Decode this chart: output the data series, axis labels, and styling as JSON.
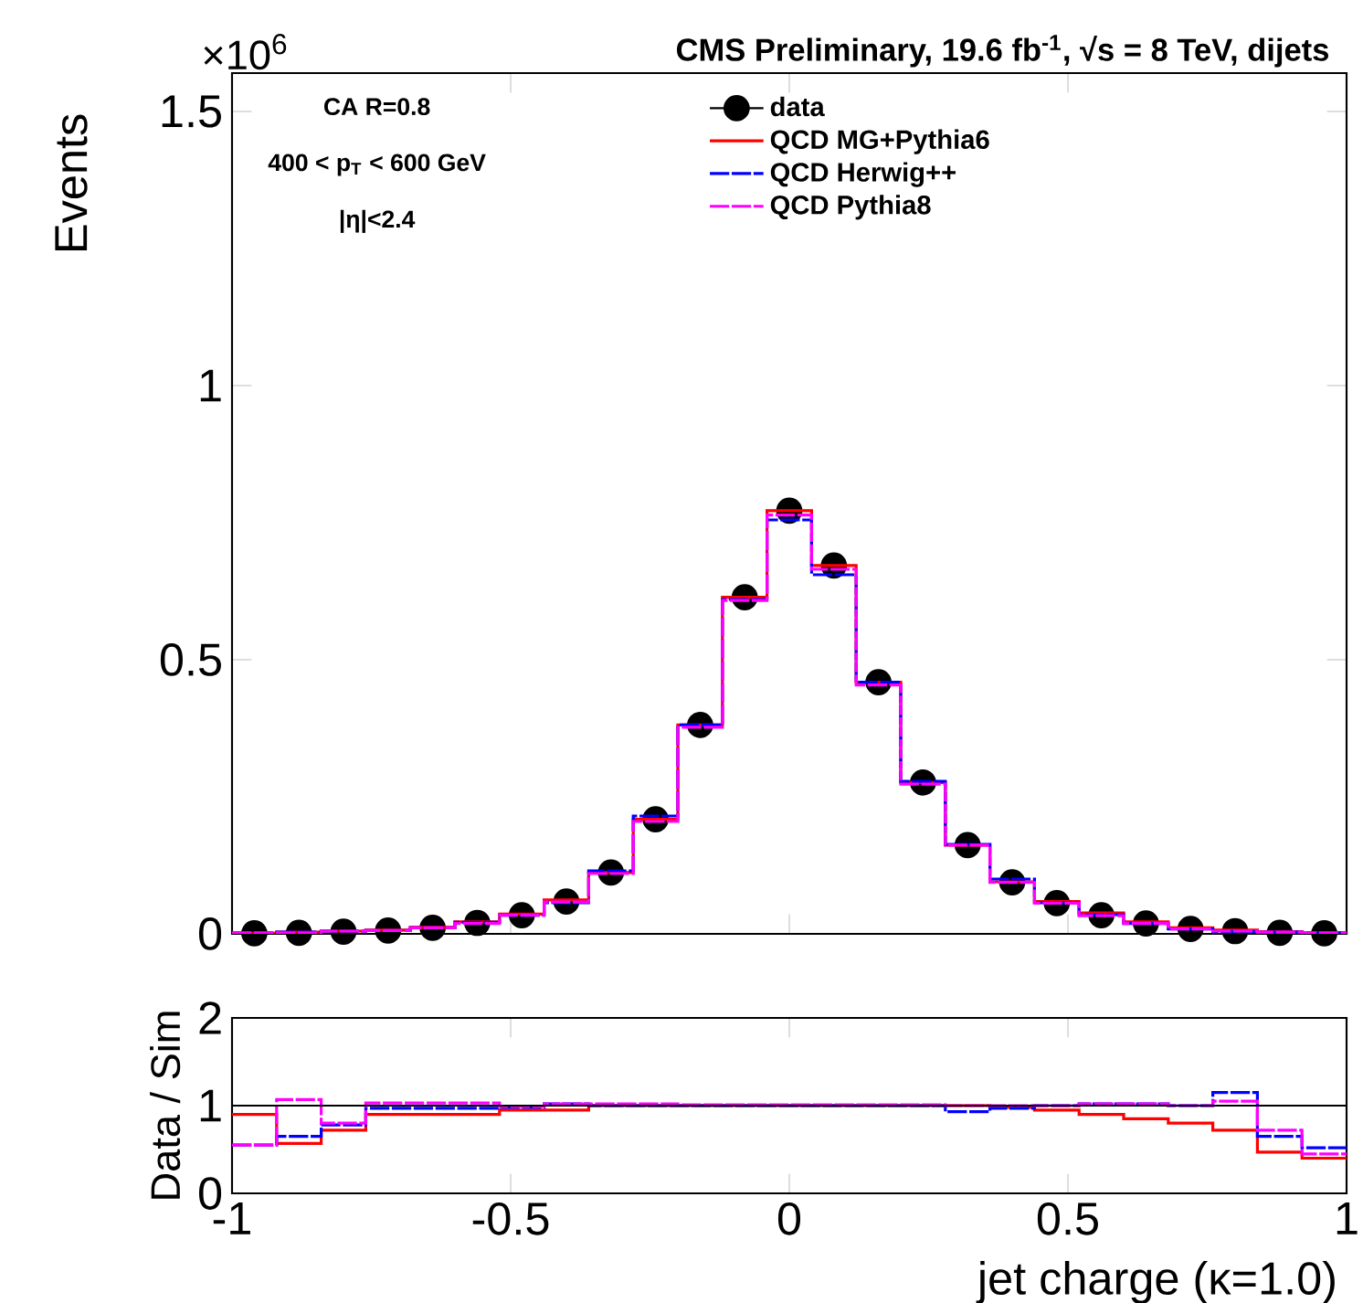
{
  "chart_data": [
    {
      "type": "histogram",
      "title": "CMS Preliminary, 19.6 fb$^{-1}$, √s = 8 TeV, dijets",
      "ylabel": "Events",
      "annotations": [
        "×10$^{6}$",
        "CA R=0.8",
        "400 < p$_{T}$ < 600 GeV",
        "|η|<2.4"
      ],
      "bins": [
        -1,
        -0.92,
        -0.84,
        -0.76,
        -0.68,
        -0.6,
        -0.52,
        -0.44,
        -0.36,
        -0.28,
        -0.2,
        -0.12,
        -0.04,
        0.04,
        0.12,
        0.2,
        0.28,
        0.36,
        0.44,
        0.52,
        0.6,
        0.68,
        0.76,
        0.84,
        0.92,
        1
      ],
      "series": [
        {
          "name": "data",
          "type": "scatter",
          "color": "#000000",
          "marker": "circle",
          "x": [
            -0.96,
            -0.88,
            -0.8,
            -0.72,
            -0.64,
            -0.56,
            -0.48,
            -0.4,
            -0.32,
            -0.24,
            -0.16,
            -0.08,
            0,
            0.08,
            0.16,
            0.24,
            0.32,
            0.4,
            0.48,
            0.56,
            0.64,
            0.72,
            0.8,
            0.88,
            0.96
          ],
          "values": [
            0.001,
            0.002,
            0.004,
            0.006,
            0.011,
            0.02,
            0.034,
            0.059,
            0.112,
            0.209,
            0.381,
            0.614,
            0.772,
            0.672,
            0.459,
            0.276,
            0.162,
            0.094,
            0.056,
            0.034,
            0.019,
            0.009,
            0.005,
            0.002,
            0.001
          ]
        },
        {
          "name": "QCD MG+Pythia6",
          "color": "#ff0000",
          "line_style": "solid",
          "values": [
            0.001,
            0.003,
            0.005,
            0.007,
            0.012,
            0.022,
            0.036,
            0.062,
            0.112,
            0.209,
            0.381,
            0.614,
            0.772,
            0.672,
            0.459,
            0.276,
            0.162,
            0.095,
            0.059,
            0.038,
            0.022,
            0.011,
            0.007,
            0.004,
            0.002
          ]
        },
        {
          "name": "QCD Herwig++",
          "color": "#0000ff",
          "line_style": "dashed",
          "values": [
            0.002,
            0.003,
            0.005,
            0.006,
            0.011,
            0.021,
            0.034,
            0.057,
            0.115,
            0.215,
            0.381,
            0.61,
            0.755,
            0.655,
            0.459,
            0.278,
            0.163,
            0.1,
            0.057,
            0.035,
            0.019,
            0.009,
            0.004,
            0.003,
            0.002
          ]
        },
        {
          "name": "QCD Pythia8",
          "color": "#ff00ff",
          "line_style": "dashed",
          "values": [
            0.002,
            0.002,
            0.005,
            0.006,
            0.011,
            0.019,
            0.034,
            0.058,
            0.11,
            0.205,
            0.377,
            0.608,
            0.764,
            0.665,
            0.454,
            0.273,
            0.162,
            0.094,
            0.056,
            0.033,
            0.019,
            0.009,
            0.005,
            0.003,
            0.002
          ]
        }
      ],
      "xlim": [
        -1,
        1
      ],
      "xticks": [
        -1,
        -0.5,
        0,
        0.5,
        1
      ],
      "ylim": [
        0,
        1.57
      ],
      "yticks": [
        0,
        0.5,
        1,
        1.5
      ],
      "tick_labels": "y",
      "legend": "top"
    },
    {
      "type": "histogram",
      "xlabel": "jet charge (κ=1.0)",
      "ylabel": "Data / Sim",
      "bins": [
        -1,
        -0.92,
        -0.84,
        -0.76,
        -0.68,
        -0.6,
        -0.52,
        -0.44,
        -0.36,
        -0.28,
        -0.2,
        -0.12,
        -0.04,
        0.04,
        0.12,
        0.2,
        0.28,
        0.36,
        0.44,
        0.52,
        0.6,
        0.68,
        0.76,
        0.84,
        0.92,
        1
      ],
      "series": [
        {
          "color": "#ff0000",
          "line_style": "solid",
          "values": [
            0.9,
            0.57,
            0.72,
            0.9,
            0.9,
            0.9,
            0.95,
            0.95,
            1,
            1,
            1,
            1,
            1,
            1,
            1,
            1,
            1,
            0.98,
            0.95,
            0.9,
            0.85,
            0.8,
            0.72,
            0.47,
            0.4
          ]
        },
        {
          "color": "#0000ff",
          "line_style": "dashed",
          "values": [
            0.55,
            0.65,
            0.78,
            0.97,
            0.97,
            0.97,
            0.98,
            1.02,
            1,
            1,
            1,
            1,
            1,
            1,
            1,
            1,
            0.93,
            0.97,
            1,
            1.02,
            1.02,
            1,
            1.15,
            0.65,
            0.52
          ]
        },
        {
          "color": "#ff00ff",
          "line_style": "dashed",
          "values": [
            0.55,
            1.07,
            0.8,
            1.03,
            1.03,
            1.03,
            0.99,
            1.02,
            1.02,
            1.02,
            1.01,
            1.01,
            1.01,
            1.01,
            1.01,
            1.01,
            1,
            1,
            1,
            1.02,
            1.02,
            1,
            1.05,
            0.72,
            0.45
          ]
        }
      ],
      "ref_lines": [
        {
          "axis": "y",
          "value": 1
        }
      ],
      "xlim": [
        -1,
        1
      ],
      "xticks": [
        -1,
        -0.5,
        0,
        0.5,
        1
      ],
      "ylim": [
        0,
        2
      ],
      "yticks": [
        0,
        1,
        2
      ]
    }
  ]
}
